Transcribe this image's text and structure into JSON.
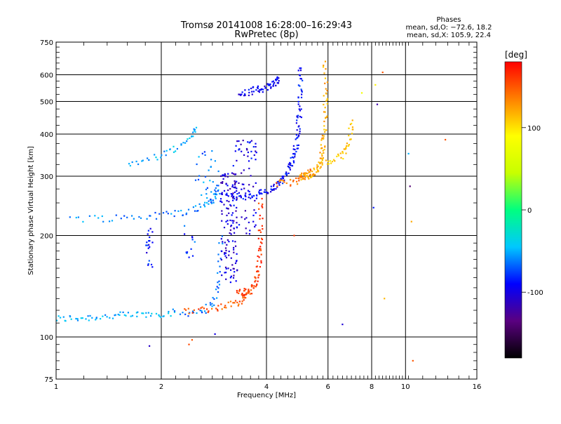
{
  "chart_data": {
    "type": "scatter",
    "title": "Tromsø 20141008 16:28:00–16:29:43",
    "subtitle": "RwPretec (8p)",
    "stats": {
      "heading": "Phases",
      "line1": "mean, sd,O: −72.6, 18.2",
      "line2": "mean, sd,X: 105.9, 22.4"
    },
    "xlabel": "Frequency [MHz]",
    "ylabel": "Stationary phase Virtual Height [km]",
    "xscale": "log",
    "yscale": "log",
    "xlim": [
      1,
      16
    ],
    "ylim": [
      75,
      750
    ],
    "x_ticks": [
      {
        "value": 1,
        "label": "1"
      },
      {
        "value": 2,
        "label": "2"
      },
      {
        "value": 4,
        "label": "4"
      },
      {
        "value": 6,
        "label": "6"
      },
      {
        "value": 8,
        "label": "8"
      },
      {
        "value": 10,
        "label": "10"
      },
      {
        "value": 16,
        "label": "16"
      }
    ],
    "y_ticks": [
      {
        "value": 75,
        "label": "75"
      },
      {
        "value": 100,
        "label": "100"
      },
      {
        "value": 200,
        "label": "200"
      },
      {
        "value": 300,
        "label": "300"
      },
      {
        "value": 400,
        "label": "400"
      },
      {
        "value": 500,
        "label": "500"
      },
      {
        "value": 600,
        "label": "600"
      },
      {
        "value": 750,
        "label": "750"
      }
    ],
    "grid": true,
    "colorbar": {
      "label": "[deg]",
      "range": [
        -180,
        180
      ],
      "ticks": [
        {
          "value": 100,
          "label": "100"
        },
        {
          "value": 0,
          "label": "0"
        },
        {
          "value": -100,
          "label": "-100"
        }
      ],
      "colors": [
        "#000000",
        "#5a0080",
        "#0000ff",
        "#00c8ff",
        "#00ff80",
        "#c8ff00",
        "#ffff00",
        "#ff8000",
        "#ff0000"
      ]
    },
    "segments": [
      {
        "name": "lower-o-trace",
        "x0": 1.0,
        "x1": 2.2,
        "y0": 113,
        "y1": 118,
        "bend": 0.0,
        "count": 60,
        "phase": -50
      },
      {
        "name": "lower-o-rise",
        "x0": 2.2,
        "x1": 2.95,
        "y0": 118,
        "y1": 200,
        "bend": 0.85,
        "count": 40,
        "phase": -65
      },
      {
        "name": "lower-x-trace",
        "x0": 2.3,
        "x1": 3.5,
        "y0": 120,
        "y1": 135,
        "bend": 0.4,
        "count": 45,
        "phase": 150
      },
      {
        "name": "lower-x-rise",
        "x0": 3.3,
        "x1": 3.85,
        "y0": 135,
        "y1": 260,
        "bend": 0.8,
        "count": 80,
        "phase": 160
      },
      {
        "name": "upper-o-trace",
        "x0": 1.1,
        "x1": 2.9,
        "y0": 225,
        "y1": 280,
        "bend": 0.6,
        "count": 70,
        "phase": -60
      },
      {
        "name": "upper-o-rise",
        "x0": 3.0,
        "x1": 5.0,
        "y0": 260,
        "y1": 640,
        "bend": 0.75,
        "count": 150,
        "phase": -90
      },
      {
        "name": "upper-x-trace",
        "x0": 4.3,
        "x1": 5.3,
        "y0": 285,
        "y1": 310,
        "bend": 0.3,
        "count": 40,
        "phase": 140
      },
      {
        "name": "upper-x-rise",
        "x0": 5.0,
        "x1": 5.9,
        "y0": 300,
        "y1": 650,
        "bend": 0.8,
        "count": 100,
        "phase": 120
      },
      {
        "name": "high-x-trace",
        "x0": 5.8,
        "x1": 7.0,
        "y0": 330,
        "y1": 440,
        "bend": 0.5,
        "count": 40,
        "phase": 110
      },
      {
        "name": "multi-hop-trace",
        "x0": 1.6,
        "x1": 2.5,
        "y0": 330,
        "y1": 420,
        "bend": 0.3,
        "count": 40,
        "phase": -50
      },
      {
        "name": "upper-echoes",
        "x0": 3.35,
        "x1": 4.35,
        "y0": 530,
        "y1": 580,
        "bend": 0.2,
        "count": 60,
        "phase": -95
      }
    ],
    "clusters": [
      {
        "name": "spread-f-column",
        "x0": 2.95,
        "x1": 3.3,
        "y0": 145,
        "y1": 310,
        "count": 130,
        "phase": -105
      },
      {
        "name": "spread-core",
        "x0": 3.2,
        "x1": 3.75,
        "y0": 200,
        "y1": 390,
        "count": 70,
        "phase": -100
      },
      {
        "name": "mid-blob",
        "x0": 2.5,
        "x1": 2.95,
        "y0": 250,
        "y1": 360,
        "count": 30,
        "phase": -60
      },
      {
        "name": "low-patch",
        "x0": 1.8,
        "x1": 1.9,
        "y0": 160,
        "y1": 210,
        "count": 20,
        "phase": -90
      },
      {
        "name": "low-stub",
        "x0": 2.3,
        "x1": 2.5,
        "y0": 170,
        "y1": 220,
        "count": 12,
        "phase": -75
      }
    ],
    "isolated_points": [
      {
        "x": 2.4,
        "y": 95,
        "phase": 155
      },
      {
        "x": 2.45,
        "y": 98,
        "phase": 150
      },
      {
        "x": 2.85,
        "y": 102,
        "phase": -100
      },
      {
        "x": 1.85,
        "y": 94,
        "phase": -110
      },
      {
        "x": 6.6,
        "y": 109,
        "phase": -105
      },
      {
        "x": 8.1,
        "y": 242,
        "phase": -85
      },
      {
        "x": 8.7,
        "y": 130,
        "phase": 115
      },
      {
        "x": 10.3,
        "y": 280,
        "phase": -140
      },
      {
        "x": 10.2,
        "y": 350,
        "phase": -50
      },
      {
        "x": 10.4,
        "y": 220,
        "phase": 120
      },
      {
        "x": 10.5,
        "y": 85,
        "phase": 150
      },
      {
        "x": 13.0,
        "y": 385,
        "phase": 150
      },
      {
        "x": 8.6,
        "y": 610,
        "phase": 150
      },
      {
        "x": 8.2,
        "y": 560,
        "phase": 95
      },
      {
        "x": 7.5,
        "y": 530,
        "phase": 80
      },
      {
        "x": 8.3,
        "y": 490,
        "phase": -120
      },
      {
        "x": 4.8,
        "y": 200,
        "phase": 160
      }
    ]
  }
}
